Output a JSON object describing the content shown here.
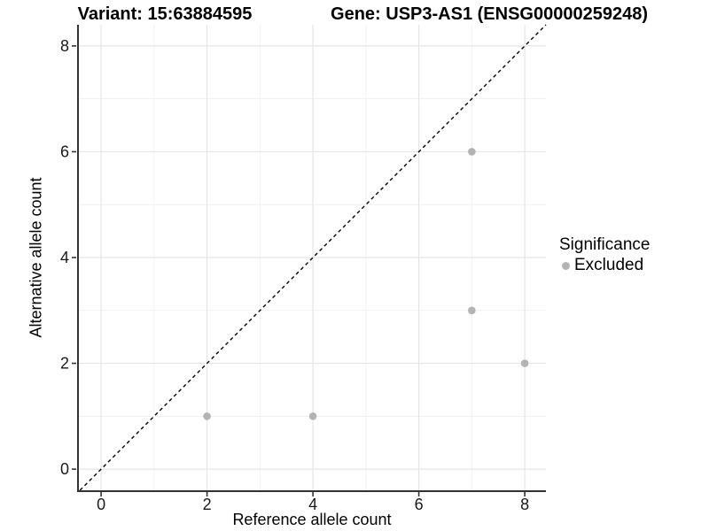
{
  "header": {
    "title_left": "Variant: 15:63884595",
    "title_right": "Gene: USP3-AS1 (ENSG00000259248)"
  },
  "legend": {
    "title": "Significance",
    "entries": [
      {
        "label": "Excluded",
        "color": "#b3b3b3"
      }
    ],
    "position": "right"
  },
  "chart_data": {
    "type": "scatter",
    "title": "Variant: 15:63884595",
    "subtitle": "Gene: USP3-AS1 (ENSG00000259248)",
    "xlabel": "Reference allele count",
    "ylabel": "Alternative allele count",
    "xlim": [
      -0.42,
      8.4
    ],
    "ylim": [
      -0.4,
      8.4
    ],
    "xticks": [
      0,
      2,
      4,
      6,
      8
    ],
    "yticks": [
      0,
      2,
      4,
      6,
      8
    ],
    "minor_xticks": [
      1,
      3,
      5,
      7
    ],
    "minor_yticks": [
      1,
      3,
      5,
      7
    ],
    "grid": "on",
    "legend_position": "right",
    "identity_line": {
      "style": "dashed",
      "slope": 1,
      "intercept": 0,
      "color": "#000000"
    },
    "series": [
      {
        "name": "Excluded",
        "color": "#b3b3b3",
        "points": [
          [
            2,
            1
          ],
          [
            4,
            1
          ],
          [
            7,
            3
          ],
          [
            7,
            6
          ],
          [
            8,
            2
          ]
        ]
      }
    ],
    "colors": {
      "axis": "#333333",
      "tick_label": "#1a1a1a",
      "grid_major": "#e5e5e5",
      "grid_minor": "#f1f1f1",
      "panel_bg": "#ffffff"
    }
  }
}
